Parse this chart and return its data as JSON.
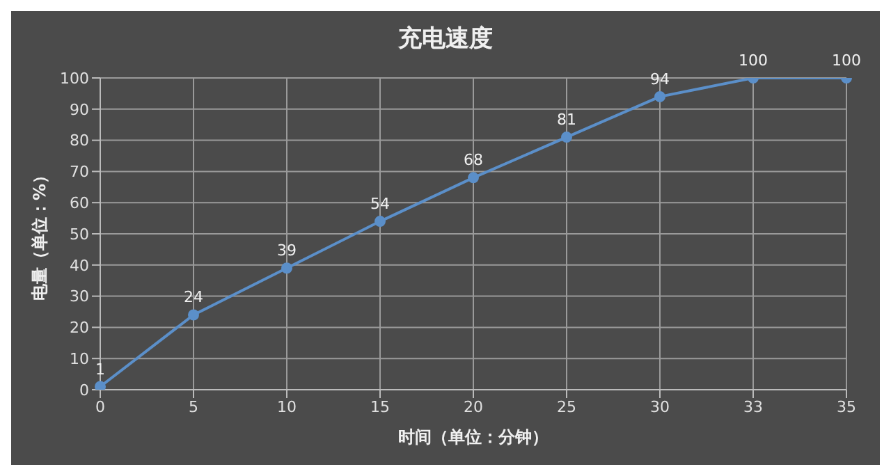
{
  "chart_data": {
    "type": "line",
    "title": "充电速度",
    "xlabel": "时间（单位：分钟）",
    "ylabel": "电量（单位：%）",
    "categories": [
      "0",
      "5",
      "10",
      "15",
      "20",
      "25",
      "30",
      "33",
      "35"
    ],
    "series": [
      {
        "color": "#5b8fc9",
        "values": [
          1,
          24,
          39,
          54,
          68,
          81,
          94,
          100,
          100
        ]
      }
    ],
    "ylim": [
      0,
      100
    ],
    "yticks": [
      0,
      10,
      20,
      30,
      40,
      50,
      60,
      70,
      80,
      90,
      100
    ],
    "grid": true,
    "marker": "circle",
    "data_labels": true,
    "legend": false
  }
}
